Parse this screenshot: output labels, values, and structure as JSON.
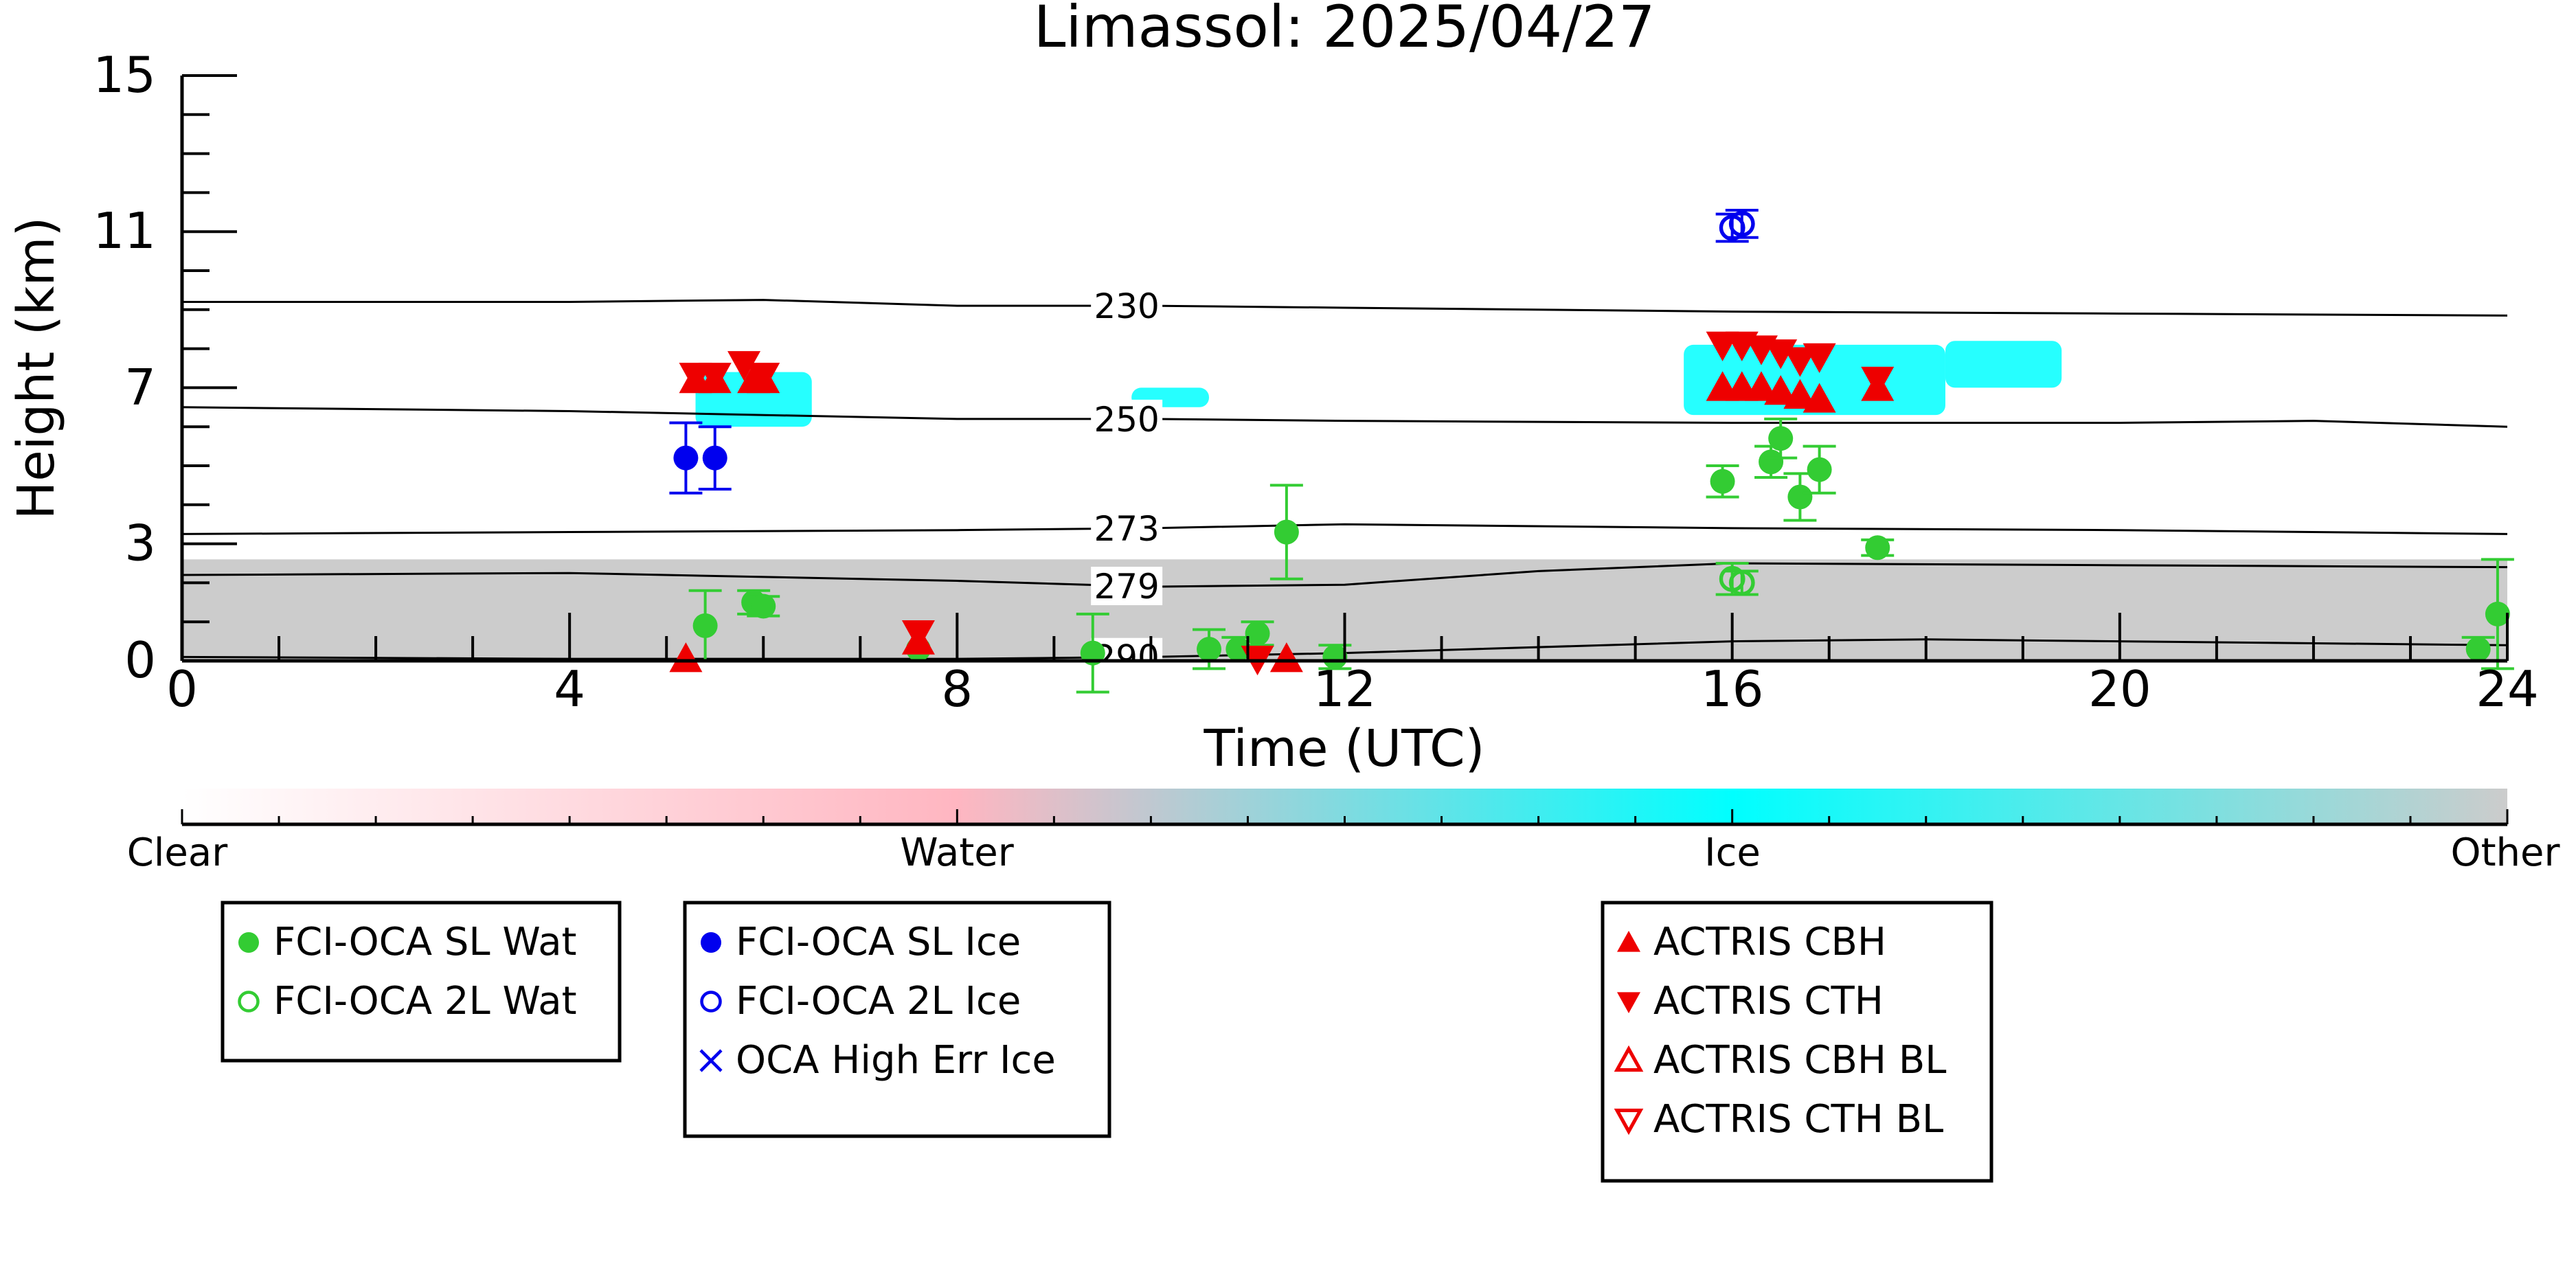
{
  "chart_data": {
    "type": "scatter",
    "title": "Limassol: 2025/04/27",
    "xlabel": "Time (UTC)",
    "ylabel": "Height (km)",
    "xlim": [
      0,
      24
    ],
    "ylim": [
      0,
      15
    ],
    "x_ticks": [
      "0",
      "4",
      "8",
      "12",
      "16",
      "20",
      "24"
    ],
    "y_ticks": [
      "0",
      "3",
      "7",
      "11",
      "15"
    ],
    "grid": false,
    "temperature_contours": [
      {
        "label": "230",
        "points": [
          [
            0,
            9.2
          ],
          [
            4,
            9.2
          ],
          [
            6,
            9.25
          ],
          [
            8,
            9.1
          ],
          [
            10,
            9.1
          ],
          [
            12,
            9.05
          ],
          [
            16,
            8.95
          ],
          [
            20,
            8.9
          ],
          [
            24,
            8.85
          ]
        ]
      },
      {
        "label": "250",
        "points": [
          [
            0,
            6.5
          ],
          [
            4,
            6.4
          ],
          [
            8,
            6.2
          ],
          [
            10,
            6.2
          ],
          [
            12,
            6.15
          ],
          [
            16,
            6.1
          ],
          [
            20,
            6.1
          ],
          [
            22,
            6.15
          ],
          [
            24,
            6.0
          ]
        ]
      },
      {
        "label": "273",
        "points": [
          [
            0,
            3.25
          ],
          [
            4,
            3.3
          ],
          [
            8,
            3.35
          ],
          [
            10,
            3.4
          ],
          [
            12,
            3.5
          ],
          [
            16,
            3.4
          ],
          [
            20,
            3.35
          ],
          [
            24,
            3.25
          ]
        ]
      },
      {
        "label": "279",
        "points": [
          [
            0,
            2.2
          ],
          [
            4,
            2.25
          ],
          [
            8,
            2.05
          ],
          [
            10,
            1.9
          ],
          [
            12,
            1.95
          ],
          [
            14,
            2.3
          ],
          [
            16,
            2.5
          ],
          [
            20,
            2.45
          ],
          [
            24,
            2.4
          ]
        ]
      },
      {
        "label": "290",
        "points": [
          [
            0,
            0.1
          ],
          [
            4,
            0.05
          ],
          [
            8,
            0.05
          ],
          [
            10,
            0.1
          ],
          [
            12,
            0.2
          ],
          [
            16,
            0.5
          ],
          [
            18,
            0.55
          ],
          [
            20,
            0.5
          ],
          [
            24,
            0.4
          ]
        ]
      }
    ],
    "cloudnet_regions": [
      {
        "class": "Other",
        "x": [
          0,
          24
        ],
        "y": [
          0,
          2.6
        ]
      },
      {
        "class": "Ice",
        "x": [
          5.3,
          6.5
        ],
        "y": [
          6.0,
          7.4
        ]
      },
      {
        "class": "Ice",
        "x": [
          9.8,
          10.6
        ],
        "y": [
          6.5,
          7.0
        ]
      },
      {
        "class": "Ice",
        "x": [
          15.5,
          18.2
        ],
        "y": [
          6.3,
          8.1
        ]
      },
      {
        "class": "Ice",
        "x": [
          18.2,
          19.4
        ],
        "y": [
          7.0,
          8.2
        ]
      }
    ],
    "series": [
      {
        "name": "FCI-OCA SL Wat",
        "marker": "filled-circle",
        "color": "#33cc33",
        "points": [
          [
            5.4,
            0.9,
            0.9
          ],
          [
            5.9,
            1.5,
            0.3
          ],
          [
            6.0,
            1.4,
            0.25
          ],
          [
            7.6,
            0.3,
            0
          ],
          [
            9.4,
            0.2,
            1.0
          ],
          [
            10.6,
            0.3,
            0.5
          ],
          [
            10.9,
            0.3,
            0.3
          ],
          [
            11.1,
            0.7,
            0.3
          ],
          [
            11.4,
            3.3,
            1.2
          ],
          [
            11.9,
            0.1,
            0.3
          ],
          [
            15.9,
            4.6,
            0.4
          ],
          [
            16.4,
            5.1,
            0.4
          ],
          [
            16.5,
            5.7,
            0.5
          ],
          [
            16.7,
            4.2,
            0.6
          ],
          [
            16.9,
            4.9,
            0.6
          ],
          [
            17.5,
            2.9,
            0.2
          ],
          [
            23.7,
            0.3,
            0.3
          ],
          [
            23.9,
            1.2,
            1.4
          ]
        ]
      },
      {
        "name": "FCI-OCA 2L Wat",
        "marker": "open-circle",
        "color": "#33cc33",
        "points": [
          [
            16.0,
            2.1,
            0.4
          ],
          [
            16.1,
            2.0,
            0.3
          ]
        ]
      },
      {
        "name": "FCI-OCA SL Ice",
        "marker": "filled-circle",
        "color": "#0000ee",
        "points": [
          [
            5.2,
            5.2,
            0.9
          ],
          [
            5.5,
            5.2,
            0.8
          ]
        ]
      },
      {
        "name": "FCI-OCA 2L Ice",
        "marker": "open-circle",
        "color": "#0000ee",
        "points": [
          [
            16.0,
            11.1,
            0.35
          ],
          [
            16.1,
            11.2,
            0.35
          ]
        ]
      },
      {
        "name": "OCA High Err Ice",
        "marker": "cross",
        "color": "#0000ee",
        "points": []
      },
      {
        "name": "ACTRIS CBH",
        "marker": "up-triangle",
        "color": "#ee0000",
        "points": [
          [
            5.3,
            7.2
          ],
          [
            5.5,
            7.2
          ],
          [
            5.9,
            7.2
          ],
          [
            6.0,
            7.2
          ],
          [
            15.9,
            7.0
          ],
          [
            16.1,
            7.0
          ],
          [
            16.3,
            7.0
          ],
          [
            16.5,
            6.9
          ],
          [
            16.7,
            6.8
          ],
          [
            16.9,
            6.7
          ],
          [
            17.5,
            7.0
          ],
          [
            5.2,
            0.05
          ],
          [
            7.6,
            0.5
          ],
          [
            11.4,
            0.05
          ]
        ]
      },
      {
        "name": "ACTRIS CTH",
        "marker": "down-triangle",
        "color": "#ee0000",
        "points": [
          [
            5.3,
            7.3
          ],
          [
            5.5,
            7.3
          ],
          [
            5.8,
            7.6
          ],
          [
            6.0,
            7.3
          ],
          [
            15.9,
            8.1
          ],
          [
            16.1,
            8.1
          ],
          [
            16.3,
            8.0
          ],
          [
            16.5,
            7.9
          ],
          [
            16.7,
            7.7
          ],
          [
            16.9,
            7.8
          ],
          [
            17.5,
            7.2
          ],
          [
            7.6,
            0.7
          ],
          [
            11.1,
            0.05
          ]
        ]
      },
      {
        "name": "ACTRIS CBH BL",
        "marker": "open-up-triangle",
        "color": "#ee0000",
        "points": []
      },
      {
        "name": "ACTRIS CTH BL",
        "marker": "open-down-triangle",
        "color": "#ee0000",
        "points": []
      }
    ],
    "colorbar": {
      "labels": [
        "Clear",
        "Water",
        "Ice",
        "Other"
      ],
      "colors": [
        "#ffffff",
        "#ffb6c1",
        "#00ffff",
        "#cccccc"
      ]
    },
    "legend_placement": "bottom"
  },
  "legend_groups": [
    {
      "entries": [
        {
          "label": "FCI-OCA SL Wat",
          "marker": "filled-circle",
          "color": "#33cc33"
        },
        {
          "label": "FCI-OCA 2L Wat",
          "marker": "open-circle",
          "color": "#33cc33"
        }
      ]
    },
    {
      "entries": [
        {
          "label": "FCI-OCA SL Ice",
          "marker": "filled-circle",
          "color": "#0000ee"
        },
        {
          "label": "FCI-OCA 2L Ice",
          "marker": "open-circle",
          "color": "#0000ee"
        },
        {
          "label": "OCA High Err Ice",
          "marker": "cross",
          "color": "#0000ee"
        }
      ]
    },
    {
      "entries": [
        {
          "label": "ACTRIS CBH",
          "marker": "up-triangle",
          "color": "#ee0000"
        },
        {
          "label": "ACTRIS CTH",
          "marker": "down-triangle",
          "color": "#ee0000"
        },
        {
          "label": "ACTRIS CBH BL",
          "marker": "open-up-triangle",
          "color": "#ee0000"
        },
        {
          "label": "ACTRIS CTH BL",
          "marker": "open-down-triangle",
          "color": "#ee0000"
        }
      ]
    }
  ]
}
